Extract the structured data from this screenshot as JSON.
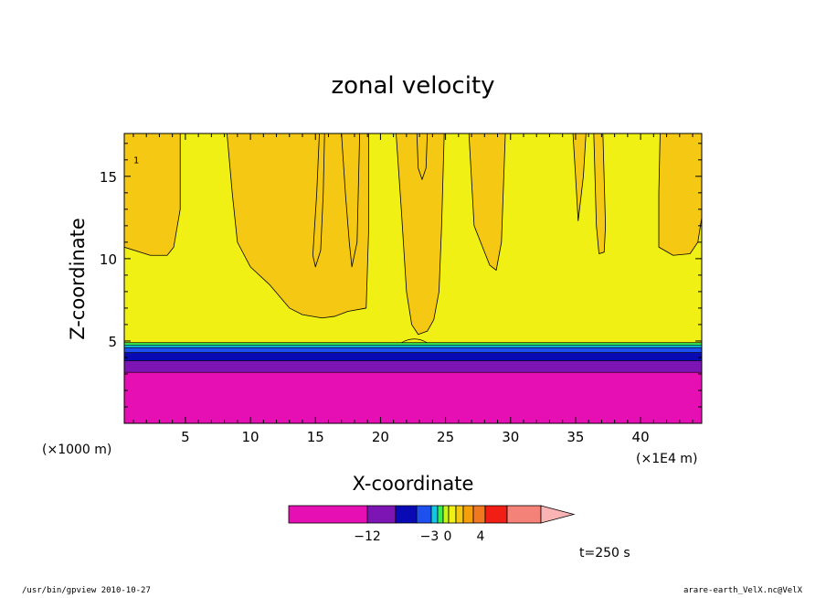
{
  "chart_data": {
    "type": "contour-filled",
    "title": "zonal velocity",
    "xlabel": "X-coordinate",
    "ylabel": "Z-coordinate",
    "x_unit_left": "(×1000 m)",
    "x_unit_right": "(×1E4 m)",
    "x_ticks": [
      "5",
      "10",
      "15",
      "20",
      "25",
      "30",
      "35",
      "40"
    ],
    "y_ticks": [
      "5",
      "10",
      "15"
    ],
    "xlim": [
      0.3,
      44.7
    ],
    "ylim": [
      0,
      17.6
    ],
    "contour_label": "1",
    "time_label": "t=250 s",
    "colorbar": {
      "labels": [
        "−12",
        "−3",
        "0",
        "4"
      ],
      "colors": [
        "#e60fb4",
        "#7d14b4",
        "#0a0ab4",
        "#1e50f0",
        "#0fc8e6",
        "#37f050",
        "#c8f514",
        "#f0f014",
        "#f5c814",
        "#f5a00a",
        "#f0781e",
        "#f01e14",
        "#f58278",
        "#fab4b4"
      ]
    },
    "bands": [
      {
        "z_from": 0,
        "z_to": 3.1,
        "color": "#e60fb4"
      },
      {
        "z_from": 3.1,
        "z_to": 3.8,
        "color": "#7d14b4"
      },
      {
        "z_from": 3.8,
        "z_to": 4.3,
        "color": "#0a0ab4"
      },
      {
        "z_from": 4.3,
        "z_to": 4.6,
        "color": "#1e50f0"
      },
      {
        "z_from": 4.6,
        "z_to": 4.75,
        "color": "#0fc8e6"
      },
      {
        "z_from": 4.75,
        "z_to": 4.9,
        "color": "#37f050"
      },
      {
        "z_from": 4.9,
        "z_to": 17.6,
        "color": "#f0f014"
      }
    ],
    "orange_regions": [
      [
        [
          0.3,
          17.6
        ],
        [
          0.3,
          10.7
        ],
        [
          2.3,
          10.2
        ],
        [
          3.6,
          10.2
        ],
        [
          4.1,
          10.7
        ],
        [
          4.6,
          13.0
        ],
        [
          4.6,
          17.6
        ]
      ],
      [
        [
          8.2,
          17.6
        ],
        [
          8.6,
          14.0
        ],
        [
          9.0,
          11.0
        ],
        [
          10.0,
          9.5
        ],
        [
          11.5,
          8.4
        ],
        [
          13.0,
          7.0
        ],
        [
          14.0,
          6.6
        ],
        [
          15.5,
          6.4
        ],
        [
          16.5,
          6.5
        ],
        [
          17.5,
          6.8
        ],
        [
          18.9,
          7.0
        ],
        [
          19.1,
          12.0
        ],
        [
          19.1,
          17.6
        ]
      ],
      [
        [
          17.0,
          17.6
        ],
        [
          17.3,
          14.0
        ],
        [
          17.6,
          11.0
        ],
        [
          17.8,
          9.5
        ],
        [
          18.2,
          11.0
        ],
        [
          18.4,
          17.6
        ]
      ],
      [
        [
          15.3,
          17.6
        ],
        [
          15.1,
          14.0
        ],
        [
          14.9,
          11.5
        ],
        [
          14.8,
          10.2
        ],
        [
          15.0,
          9.5
        ],
        [
          15.4,
          10.5
        ],
        [
          15.6,
          14.0
        ],
        [
          15.7,
          17.6
        ]
      ],
      [
        [
          21.2,
          17.6
        ],
        [
          21.6,
          13.0
        ],
        [
          22.0,
          8.0
        ],
        [
          22.4,
          6.0
        ],
        [
          22.9,
          5.4
        ],
        [
          23.6,
          5.6
        ],
        [
          24.1,
          6.3
        ],
        [
          24.5,
          8.0
        ],
        [
          24.7,
          12.0
        ],
        [
          24.9,
          17.6
        ]
      ],
      [
        [
          22.8,
          17.6
        ],
        [
          22.9,
          15.5
        ],
        [
          23.2,
          14.8
        ],
        [
          23.5,
          15.5
        ],
        [
          23.6,
          17.6
        ]
      ],
      [
        [
          26.8,
          17.6
        ],
        [
          27.2,
          12.0
        ],
        [
          28.4,
          9.6
        ],
        [
          28.9,
          9.3
        ],
        [
          29.3,
          11.0
        ],
        [
          29.6,
          17.6
        ]
      ],
      [
        [
          34.8,
          17.6
        ],
        [
          35.0,
          15.0
        ],
        [
          35.2,
          12.3
        ],
        [
          35.6,
          15.0
        ],
        [
          35.8,
          17.6
        ]
      ],
      [
        [
          36.4,
          17.6
        ],
        [
          36.6,
          12.0
        ],
        [
          36.8,
          10.3
        ],
        [
          37.2,
          10.4
        ],
        [
          37.3,
          12.0
        ],
        [
          37.1,
          17.6
        ]
      ],
      [
        [
          41.5,
          17.6
        ],
        [
          41.4,
          14.0
        ],
        [
          41.4,
          10.7
        ],
        [
          42.5,
          10.2
        ],
        [
          43.8,
          10.3
        ],
        [
          44.4,
          11.0
        ],
        [
          44.7,
          12.5
        ],
        [
          44.7,
          17.6
        ]
      ]
    ]
  },
  "footer": {
    "left": "/usr/bin/gpview  2010-10-27",
    "right": "arare-earth_VelX.nc@VelX"
  }
}
